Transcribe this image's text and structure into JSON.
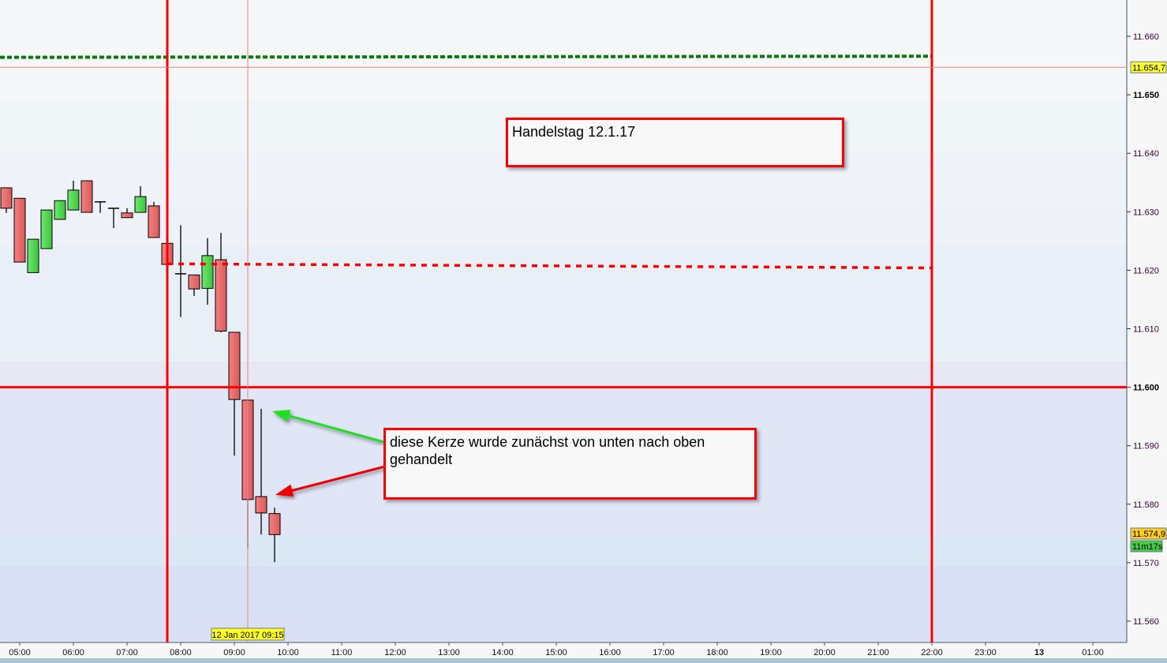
{
  "chart_data": {
    "type": "candlestick",
    "title": "",
    "xlabel": "",
    "ylabel": "",
    "ylim": [
      11555,
      11667
    ],
    "y_ticks": [
      {
        "value": 11660,
        "label": "11.660",
        "bold": false
      },
      {
        "value": 11650,
        "label": "11.650",
        "bold": true
      },
      {
        "value": 11640,
        "label": "11.640",
        "bold": false
      },
      {
        "value": 11630,
        "label": "11.630",
        "bold": false
      },
      {
        "value": 11620,
        "label": "11.620",
        "bold": false
      },
      {
        "value": 11610,
        "label": "11.610",
        "bold": false
      },
      {
        "value": 11600,
        "label": "11.600",
        "bold": true
      },
      {
        "value": 11590,
        "label": "11.590",
        "bold": false
      },
      {
        "value": 11580,
        "label": "11.580",
        "bold": false
      },
      {
        "value": 11570,
        "label": "11.570",
        "bold": false
      },
      {
        "value": 11560,
        "label": "11.560",
        "bold": false
      }
    ],
    "x_ticks": [
      {
        "time": "05:00",
        "label": "05:00"
      },
      {
        "time": "06:00",
        "label": "06:00"
      },
      {
        "time": "07:00",
        "label": "07:00"
      },
      {
        "time": "08:00",
        "label": "08:00"
      },
      {
        "time": "09:00",
        "label": "09:00"
      },
      {
        "time": "10:00",
        "label": "10:00"
      },
      {
        "time": "11:00",
        "label": "11:00"
      },
      {
        "time": "12:00",
        "label": "12:00"
      },
      {
        "time": "13:00",
        "label": "13:00"
      },
      {
        "time": "14:00",
        "label": "14:00"
      },
      {
        "time": "15:00",
        "label": "15:00"
      },
      {
        "time": "16:00",
        "label": "16:00"
      },
      {
        "time": "17:00",
        "label": "17:00"
      },
      {
        "time": "18:00",
        "label": "18:00"
      },
      {
        "time": "19:00",
        "label": "19:00"
      },
      {
        "time": "20:00",
        "label": "20:00"
      },
      {
        "time": "21:00",
        "label": "21:00"
      },
      {
        "time": "22:00",
        "label": "22:00"
      },
      {
        "time": "23:00",
        "label": "23:00"
      },
      {
        "time": "24:00",
        "label": "13",
        "bold": true
      },
      {
        "time": "25:00",
        "label": "01:00"
      }
    ],
    "candles": [
      {
        "time": "04:45",
        "open": 11634.1,
        "high": 11634.1,
        "low": 11629.8,
        "close": 11630.6
      },
      {
        "time": "05:00",
        "open": 11632.3,
        "high": 11632.3,
        "low": 11621.4,
        "close": 11621.4
      },
      {
        "time": "05:15",
        "open": 11619.6,
        "high": 11625.3,
        "low": 11619.6,
        "close": 11625.3
      },
      {
        "time": "05:30",
        "open": 11623.7,
        "high": 11630.3,
        "low": 11623.7,
        "close": 11630.3
      },
      {
        "time": "05:45",
        "open": 11628.7,
        "high": 11631.9,
        "low": 11628.7,
        "close": 11631.9
      },
      {
        "time": "06:00",
        "open": 11630.3,
        "high": 11635.3,
        "low": 11630.3,
        "close": 11633.7
      },
      {
        "time": "06:15",
        "open": 11635.3,
        "high": 11635.3,
        "low": 11629.9,
        "close": 11629.9
      },
      {
        "time": "06:30",
        "open": 11631.7,
        "high": 11631.7,
        "low": 11629.8,
        "close": 11631.7
      },
      {
        "time": "06:45",
        "open": 11630.6,
        "high": 11630.6,
        "low": 11627.2,
        "close": 11630.6
      },
      {
        "time": "07:00",
        "open": 11629.8,
        "high": 11630.6,
        "low": 11629.0,
        "close": 11629.0
      },
      {
        "time": "07:15",
        "open": 11629.9,
        "high": 11634.4,
        "low": 11629.9,
        "close": 11632.6
      },
      {
        "time": "07:30",
        "open": 11631.0,
        "high": 11631.7,
        "low": 11625.6,
        "close": 11625.6
      },
      {
        "time": "07:45",
        "open": 11624.6,
        "high": 11624.6,
        "low": 11621.0,
        "close": 11621.0
      },
      {
        "time": "08:00",
        "open": 11619.4,
        "high": 11627.7,
        "low": 11612.0,
        "close": 11619.4
      },
      {
        "time": "08:15",
        "open": 11619.2,
        "high": 11619.2,
        "low": 11615.6,
        "close": 11616.8
      },
      {
        "time": "08:30",
        "open": 11616.9,
        "high": 11625.5,
        "low": 11614.1,
        "close": 11622.5
      },
      {
        "time": "08:45",
        "open": 11621.8,
        "high": 11626.4,
        "low": 11609.4,
        "close": 11609.6
      },
      {
        "time": "09:00",
        "open": 11609.4,
        "high": 11609.4,
        "low": 11588.3,
        "close": 11597.9
      },
      {
        "time": "09:15",
        "open": 11597.8,
        "high": 11597.8,
        "low": 11572.4,
        "close": 11580.8
      },
      {
        "time": "09:30",
        "open": 11581.3,
        "high": 11596.3,
        "low": 11574.8,
        "close": 11578.5
      },
      {
        "time": "09:45",
        "open": 11578.4,
        "high": 11579.4,
        "low": 11570.1,
        "close": 11574.8
      }
    ],
    "lines": {
      "green_dashed": {
        "from": {
          "time": "04:30",
          "price": 11656.4
        },
        "to": {
          "time": "22:00",
          "price": 11656.6
        },
        "color": "#0a7a0a"
      },
      "red_dotted": {
        "from": {
          "time": "07:45",
          "price": 11621.1
        },
        "to": {
          "time": "22:00",
          "price": 11620.4
        },
        "color": "#ff0000"
      },
      "red_horizontal": {
        "price": 11600,
        "color": "#ff0000"
      },
      "red_verticals": [
        {
          "time": "07:45"
        },
        {
          "time": "22:00"
        }
      ],
      "crosshair": {
        "time": "09:15",
        "price": 11654.7,
        "color": "#f08080"
      }
    },
    "up_color": "#4fd64f",
    "down_color": "#e86a6a",
    "crosshair_price_label": "11.654,7",
    "crosshair_time_label": "12 Jan 2017 09:15",
    "last_price_label": "11.574,9",
    "countdown_label": "11m17s"
  },
  "annotations": {
    "title_box": "Handelstag 12.1.17",
    "comment_box": "diese Kerze wurde zunächst von unten nach oben gehandelt"
  }
}
